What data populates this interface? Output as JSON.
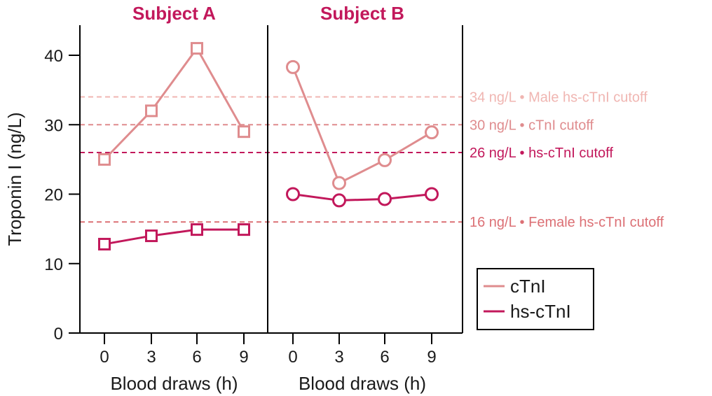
{
  "chart_data": {
    "type": "line",
    "ylabel": "Troponin I (ng/L)",
    "ylim": [
      0,
      44
    ],
    "yticks": [
      0,
      10,
      20,
      30,
      40
    ],
    "grid": false,
    "legend_placement": "bottom-right",
    "colors": {
      "cTnI": "#df8c8e",
      "hs-cTnI": "#c2185b",
      "axis": "#000000"
    },
    "panels": [
      {
        "title": "Subject A",
        "xlabel": "Blood draws (h)",
        "x": [
          0,
          3,
          6,
          9
        ],
        "marker": "square",
        "series": [
          {
            "name": "cTnI",
            "values": [
              25,
              32,
              41,
              29
            ]
          },
          {
            "name": "hs-cTnI",
            "values": [
              12.8,
              14,
              14.9,
              14.9
            ]
          }
        ]
      },
      {
        "title": "Subject B",
        "xlabel": "Blood draws (h)",
        "x": [
          0,
          3,
          6,
          9
        ],
        "marker": "circle",
        "series": [
          {
            "name": "cTnI",
            "values": [
              38.3,
              21.6,
              24.9,
              28.9
            ]
          },
          {
            "name": "hs-cTnI",
            "values": [
              20,
              19.1,
              19.3,
              20
            ]
          }
        ]
      }
    ],
    "reference_lines": [
      {
        "value": 34,
        "label": "34 ng/L • Male hs-cTnI cutoff",
        "color": "#f0b6b2"
      },
      {
        "value": 30,
        "label": "30 ng/L • cTnI cutoff",
        "color": "#df8c8e"
      },
      {
        "value": 26,
        "label": "26 ng/L • hs-cTnI cutoff",
        "color": "#c2185b"
      },
      {
        "value": 16,
        "label": "16 ng/L • Female hs-cTnI cutoff",
        "color": "#dc7075"
      }
    ],
    "legend": [
      {
        "name": "cTnI",
        "color": "#df8c8e"
      },
      {
        "name": "hs-cTnI",
        "color": "#c2185b"
      }
    ]
  }
}
